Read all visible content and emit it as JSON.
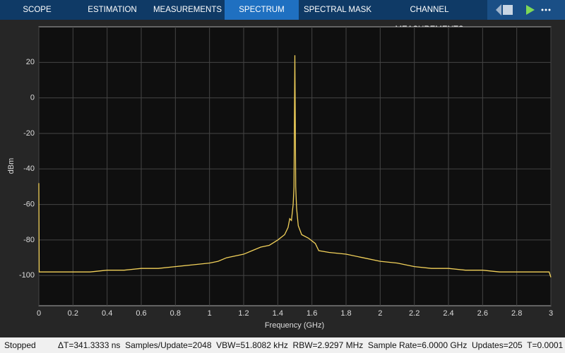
{
  "tabs": [
    "SCOPE",
    "ESTIMATION",
    "MEASUREMENTS",
    "SPECTRUM",
    "SPECTRAL MASK",
    "CHANNEL MEASUREMENTS"
  ],
  "status": {
    "state": "Stopped",
    "info": "ΔT=341.3333 ns  Samples/Update=2048  VBW=51.8082 kHz  RBW=2.9297 MHz  Sample Rate=6.0000 GHz  Updates=205  T=0.0001"
  },
  "chart_data": {
    "type": "line",
    "xlabel": "Frequency (GHz)",
    "ylabel": "dBm",
    "grid": true,
    "xlim": [
      0,
      3
    ],
    "xticks": [
      0,
      0.2,
      0.4,
      0.6,
      0.8,
      1,
      1.2,
      1.4,
      1.6,
      1.8,
      2,
      2.2,
      2.4,
      2.6,
      2.8,
      3
    ],
    "ylim": [
      -117,
      40
    ],
    "yticks": [
      -100,
      -80,
      -60,
      -40,
      -20,
      0,
      20
    ],
    "series": [
      {
        "color": "#f2d15a",
        "x": [
          0,
          0.002,
          0.1,
          0.2,
          0.3,
          0.4,
          0.5,
          0.6,
          0.7,
          0.8,
          0.9,
          1.0,
          1.05,
          1.1,
          1.2,
          1.25,
          1.3,
          1.35,
          1.4,
          1.44,
          1.46,
          1.47,
          1.48,
          1.49,
          1.495,
          1.5,
          1.505,
          1.51,
          1.52,
          1.54,
          1.58,
          1.62,
          1.64,
          1.7,
          1.8,
          1.9,
          2.0,
          2.1,
          2.2,
          2.3,
          2.4,
          2.5,
          2.6,
          2.7,
          2.8,
          2.9,
          2.99,
          3.0
        ],
        "values": [
          -48,
          -98,
          -98,
          -98,
          -98,
          -97,
          -97,
          -96,
          -96,
          -95,
          -94,
          -93,
          -92,
          -90,
          -88,
          -86,
          -84,
          -83,
          -80,
          -77,
          -73,
          -68,
          -69,
          -60,
          -50,
          24,
          -50,
          -62,
          -72,
          -77,
          -79,
          -82,
          -86,
          -87,
          -88,
          -90,
          -92,
          -93,
          -95,
          -96,
          -96,
          -97,
          -97,
          -98,
          -98,
          -98,
          -98,
          -101
        ]
      }
    ]
  }
}
